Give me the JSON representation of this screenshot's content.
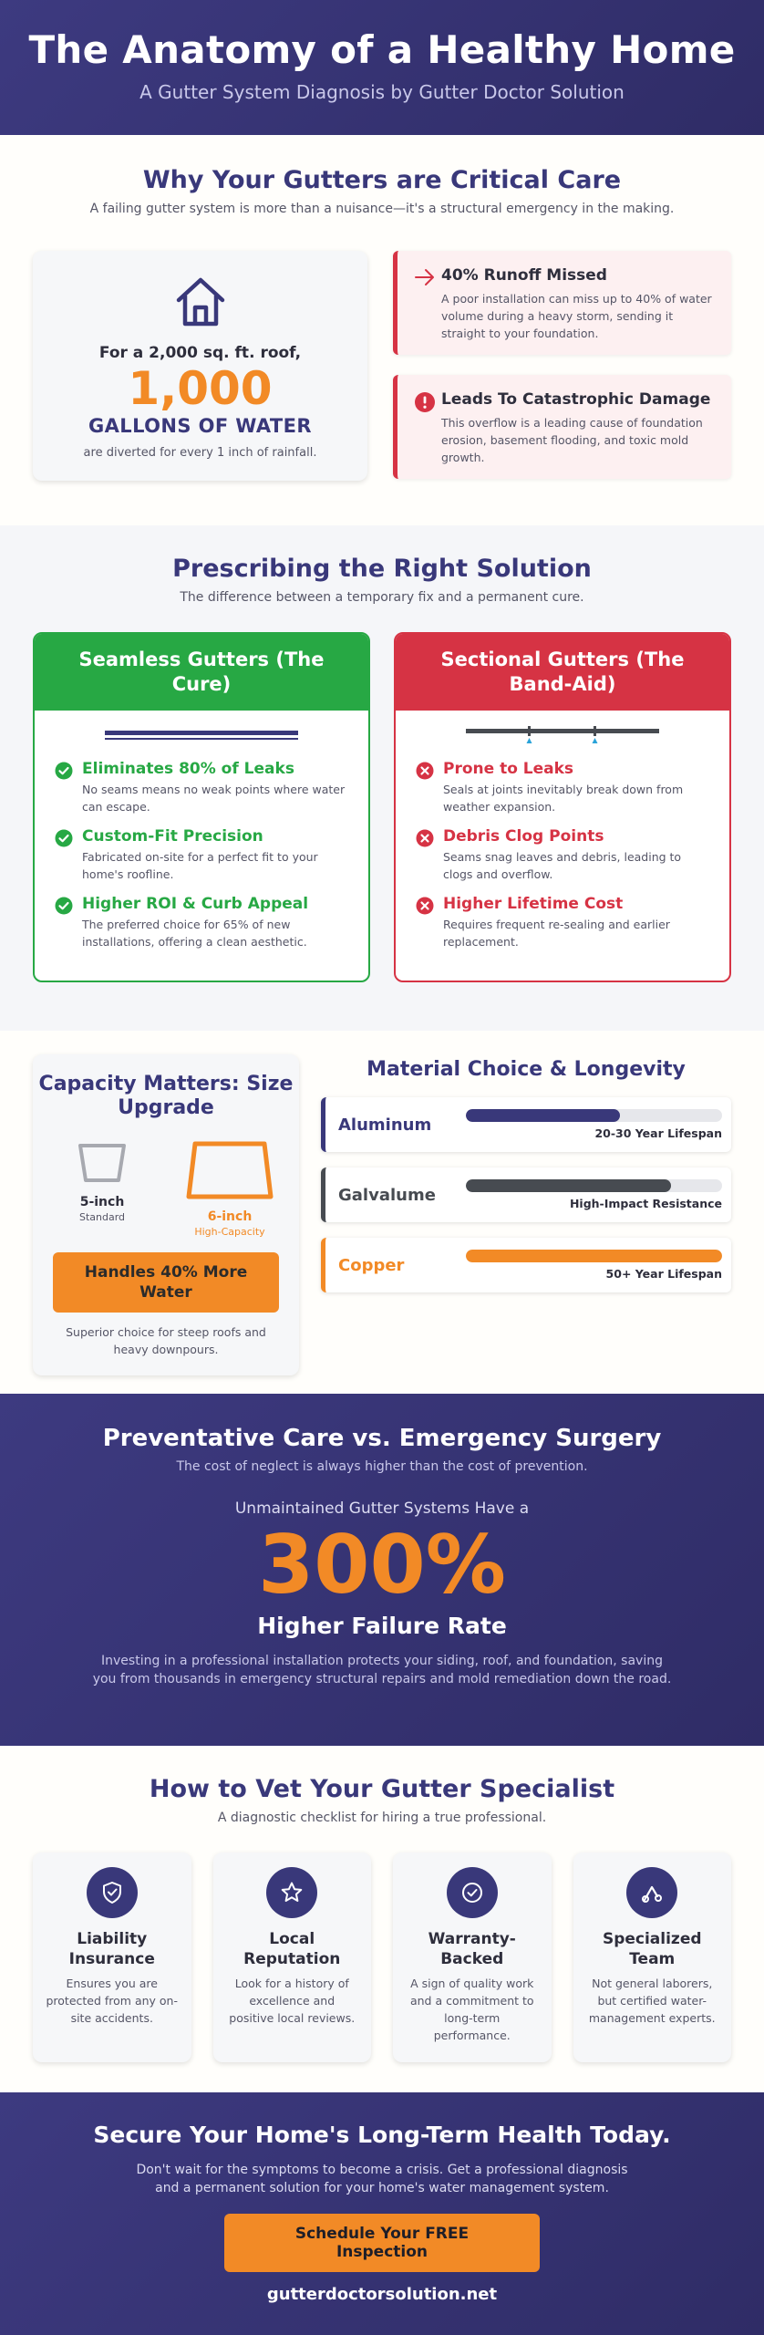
{
  "header": {
    "title": "The Anatomy of a Healthy Home",
    "subtitle": "A Gutter System Diagnosis by Gutter Doctor Solution"
  },
  "critical": {
    "title": "Why Your Gutters are Critical Care",
    "subtitle": "A failing gutter system is more than a nuisance—it's a structural emergency in the making.",
    "gallons": {
      "icon": "house-icon",
      "lead": "For a 2,000 sq. ft. roof,",
      "number": "1,000",
      "unit": "GALLONS OF WATER",
      "note": "are diverted for every 1 inch of rainfall."
    },
    "alerts": [
      {
        "icon": "arrow-right-icon",
        "title": "40% Runoff Missed",
        "text": "A poor installation can miss up to 40% of water volume during a heavy storm, sending it straight to your foundation."
      },
      {
        "icon": "exclamation-icon",
        "title": "Leads To Catastrophic Damage",
        "text": "This overflow is a leading cause of foundation erosion, basement flooding, and toxic mold growth."
      }
    ]
  },
  "solution": {
    "title": "Prescribing the Right Solution",
    "subtitle": "The difference between a temporary fix and a permanent cure.",
    "seamless": {
      "title": "Seamless Gutters (The Cure)",
      "items": [
        {
          "title": "Eliminates 80% of Leaks",
          "text": "No seams means no weak points where water can escape."
        },
        {
          "title": "Custom-Fit Precision",
          "text": "Fabricated on-site for a perfect fit to your home's roofline."
        },
        {
          "title": "Higher ROI & Curb Appeal",
          "text": "The preferred choice for 65% of new installations, offering a clean aesthetic."
        }
      ]
    },
    "sectional": {
      "title": "Sectional Gutters (The Band-Aid)",
      "items": [
        {
          "title": "Prone to Leaks",
          "text": "Seals at joints inevitably break down from weather expansion."
        },
        {
          "title": "Debris Clog Points",
          "text": "Seams snag leaves and debris, leading to clogs and overflow."
        },
        {
          "title": "Higher Lifetime Cost",
          "text": "Requires frequent re-sealing and earlier replacement."
        }
      ]
    }
  },
  "capacity": {
    "title": "Capacity Matters: Size Upgrade",
    "sizes": [
      {
        "name": "5-inch",
        "sub": "Standard"
      },
      {
        "name": "6-inch",
        "sub": "High-Capacity"
      }
    ],
    "button": "Handles 40% More Water",
    "note": "Superior choice for steep roofs and heavy downpours."
  },
  "materials": {
    "title": "Material Choice & Longevity",
    "items": [
      {
        "name": "Aluminum",
        "label": "20-30 Year Lifespan",
        "fill": 0.6,
        "color": "#39387a"
      },
      {
        "name": "Galvalume",
        "label": "High-Impact Resistance",
        "fill": 0.8,
        "color": "#474b51"
      },
      {
        "name": "Copper",
        "label": "50+ Year Lifespan",
        "fill": 1.0,
        "color": "#f28a26"
      }
    ]
  },
  "prevent": {
    "title": "Preventative Care vs. Emergency Surgery",
    "subtitle": "The cost of neglect is always higher than the cost of prevention.",
    "lead": "Unmaintained Gutter Systems Have a",
    "stat": "300%",
    "stat_label": "Higher Failure Rate",
    "note": "Investing in a professional installation protects your siding, roof, and foundation, saving you from thousands in emergency structural repairs and mold remediation down the road."
  },
  "vet": {
    "title": "How to Vet Your Gutter Specialist",
    "subtitle": "A diagnostic checklist for hiring a true professional.",
    "cards": [
      {
        "icon": "shield-check-icon",
        "title": "Liability Insurance",
        "text": "Ensures you are protected from any on-site accidents."
      },
      {
        "icon": "star-icon",
        "title": "Local Reputation",
        "text": "Look for a history of excellence and positive local reviews."
      },
      {
        "icon": "check-circle-icon",
        "title": "Warranty-Backed",
        "text": "A sign of quality work and a commitment to long-term performance."
      },
      {
        "icon": "tools-icon",
        "title": "Specialized Team",
        "text": "Not general laborers, but certified water-management experts."
      }
    ]
  },
  "footer": {
    "title": "Secure Your Home's Long-Term Health Today.",
    "text": "Don't wait for the symptoms to become a crisis. Get a professional diagnosis and a permanent solution for your home's water management system.",
    "button": "Schedule Your FREE Inspection",
    "url": "gutterdoctorsolution.net"
  },
  "colors": {
    "navy": "#39387a",
    "orange": "#f28a26",
    "green": "#27a844",
    "red": "#d63344"
  }
}
